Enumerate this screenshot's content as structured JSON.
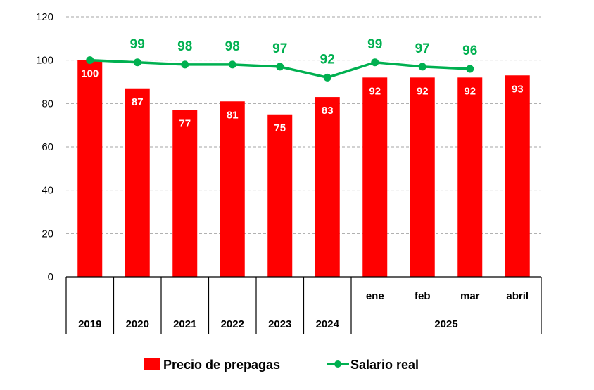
{
  "chart_data": {
    "type": "bar",
    "categories": [
      "2019",
      "2020",
      "2021",
      "2022",
      "2023",
      "2024",
      "ene",
      "feb",
      "mar",
      "abril"
    ],
    "group_labels": [
      "2019",
      "2020",
      "2021",
      "2022",
      "2023",
      "2024",
      "2025"
    ],
    "series": [
      {
        "name": "Precio de prepagas",
        "type": "bar",
        "color": "#ff0000",
        "values": [
          100,
          87,
          77,
          81,
          75,
          83,
          92,
          92,
          92,
          93
        ]
      },
      {
        "name": "Salario real",
        "type": "line",
        "color": "#00b050",
        "values": [
          100,
          99,
          98,
          98,
          97,
          92,
          99,
          97,
          96,
          null
        ],
        "labels": [
          "",
          "99",
          "98",
          "98",
          "97",
          "92",
          "99",
          "97",
          "96",
          ""
        ]
      }
    ],
    "ylim": [
      0,
      120
    ],
    "yticks": [
      0,
      20,
      40,
      60,
      80,
      100,
      120
    ],
    "grid": true,
    "legend": "bottom",
    "title": "",
    "xlabel": "",
    "ylabel": ""
  }
}
